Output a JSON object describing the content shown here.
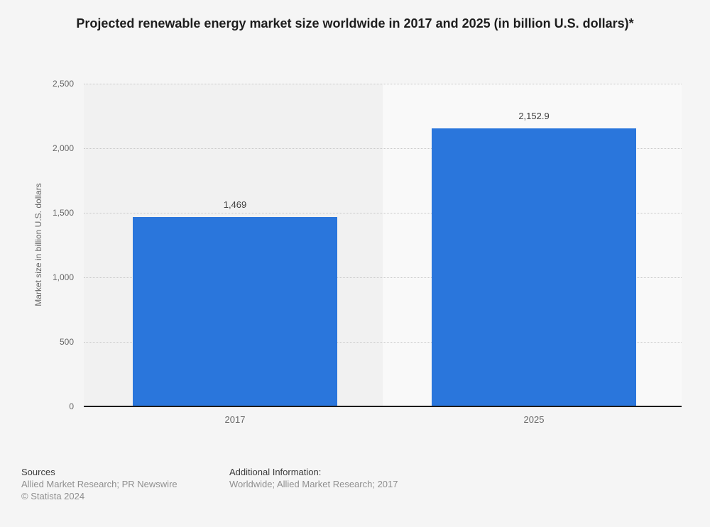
{
  "title": "Projected renewable energy market size worldwide in 2017 and 2025 (in billion U.S. dollars)*",
  "chart_data": {
    "type": "bar",
    "categories": [
      "2017",
      "2025"
    ],
    "values": [
      1469,
      2152.9
    ],
    "value_labels": [
      "1,469",
      "2,152.9"
    ],
    "title": "Projected renewable energy market size worldwide in 2017 and 2025 (in billion U.S. dollars)*",
    "xlabel": "",
    "ylabel": "Market size in billion U.S. dollars",
    "ylim": [
      0,
      2500
    ],
    "yticks": [
      0,
      500,
      1000,
      1500,
      2000,
      2500
    ],
    "ytick_labels": [
      "0",
      "500",
      "1,000",
      "1,500",
      "2,000",
      "2,500"
    ],
    "grid": "horizontal-dotted",
    "legend": "none",
    "bar_color": "#2a76dc",
    "plot_band_colors": [
      "#f1f1f1",
      "#f9f9f9"
    ],
    "background_color": "#f5f5f5",
    "axis_line_color": "#1c1c1c",
    "gridline_color": "#c9c9c9"
  },
  "footer": {
    "sources_heading": "Sources",
    "sources_line1": "Allied Market Research; PR Newswire",
    "sources_line2": "© Statista 2024",
    "additional_heading": "Additional Information:",
    "additional_line1": "Worldwide; Allied Market Research; 2017"
  }
}
